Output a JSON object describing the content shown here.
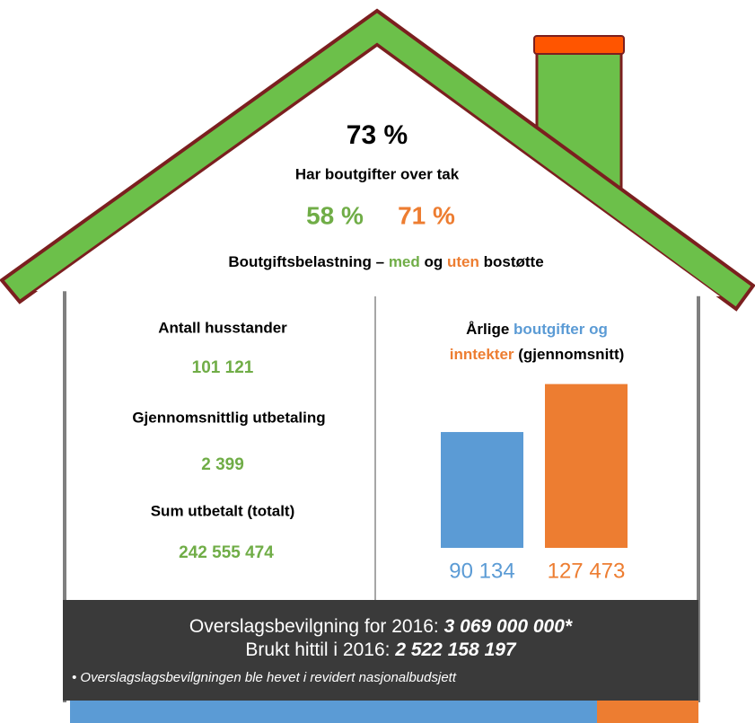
{
  "roof": {
    "headline": "73 %",
    "headline_caption": "Har boutgifter over tak",
    "share_with": "58 %",
    "share_without": "71 %",
    "burden_parts": [
      "Boutgiftsbelastning – ",
      "med",
      " og ",
      "uten",
      " bostøtte"
    ]
  },
  "stats": [
    {
      "label": "Antall husstander",
      "value": "101 121"
    },
    {
      "label": "Gjennomsnittlig utbetaling",
      "value": "2 399"
    },
    {
      "label": "Sum utbetalt (totalt)",
      "value": "242 555 474"
    }
  ],
  "chart_data": {
    "type": "bar",
    "title_lines": [
      [
        "Årlige ",
        "boutgifter og"
      ],
      [
        "inntekter",
        " (gjennomsnitt)"
      ]
    ],
    "values": [
      90134,
      127473
    ],
    "value_labels": [
      "90 134",
      "127 473"
    ],
    "colors": [
      "#5b9bd5",
      "#ed7d31"
    ],
    "ylim": [
      0,
      130000
    ]
  },
  "footer": {
    "line1_text": "Overslagsbevilgning for 2016: ",
    "line1_amount": "3 069 000 000*",
    "line2_text": "Brukt hittil i 2016: ",
    "line2_amount": "2 522 158 197",
    "note": "• Overslagslagsbevilgningen ble hevet i revidert nasjonalbudsjett"
  }
}
